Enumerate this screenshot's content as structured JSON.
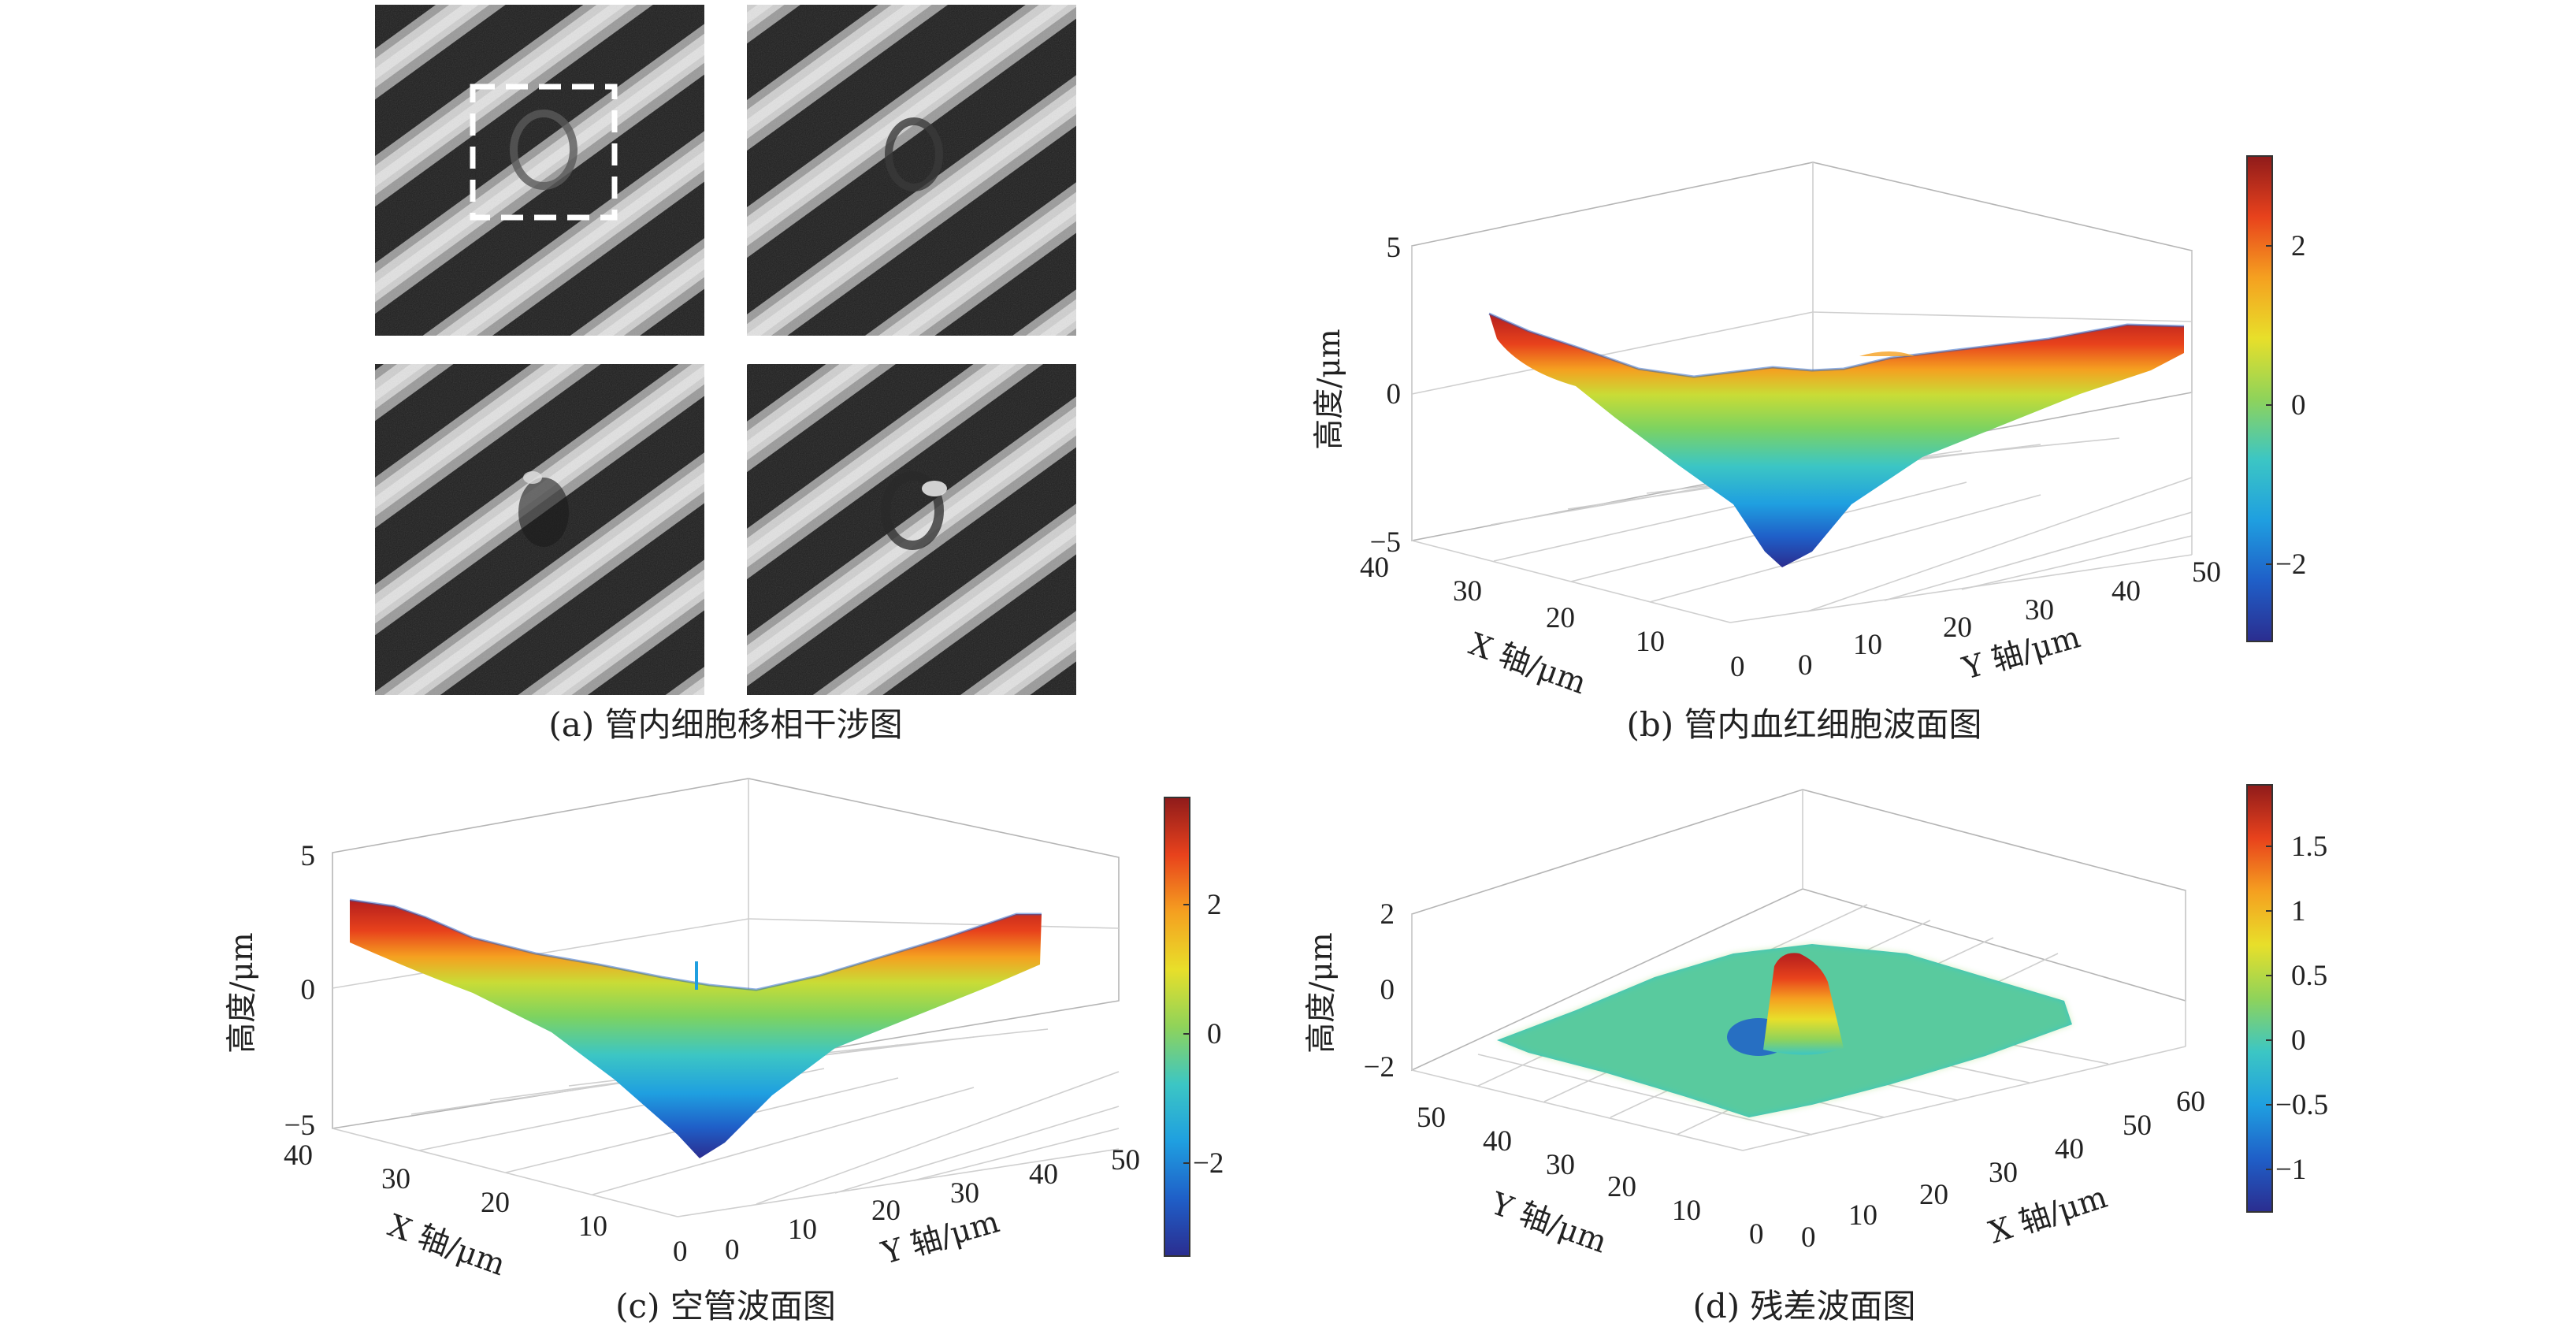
{
  "figure": {
    "panels": [
      {
        "id": "a",
        "caption": "(a) 管内细胞移相干涉图",
        "kind": "image-grid"
      },
      {
        "id": "b",
        "caption": "(b) 管内血红细胞波面图",
        "zlabel": "高度/μm",
        "xlabel": "X 轴/μm",
        "ylabel": "Y 轴/μm",
        "zticks": [
          "5",
          "0",
          "−5"
        ],
        "left_ticks": [
          "40",
          "30",
          "20",
          "10",
          "0"
        ],
        "right_ticks": [
          "0",
          "10",
          "20",
          "30",
          "40",
          "50"
        ],
        "colorbar_ticks": [
          "2",
          "0",
          "−2"
        ]
      },
      {
        "id": "c",
        "caption": "(c) 空管波面图",
        "zlabel": "高度/μm",
        "xlabel": "X 轴/μm",
        "ylabel": "Y 轴/μm",
        "zticks": [
          "5",
          "0",
          "−5"
        ],
        "left_ticks": [
          "40",
          "30",
          "20",
          "10",
          "0"
        ],
        "right_ticks": [
          "0",
          "10",
          "20",
          "30",
          "40",
          "50"
        ],
        "colorbar_ticks": [
          "2",
          "0",
          "−2"
        ]
      },
      {
        "id": "d",
        "caption": "(d) 残差波面图",
        "zlabel": "高度/μm",
        "xlabel": "Y 轴/μm",
        "ylabel": "X 轴/μm",
        "zticks": [
          "2",
          "0",
          "−2"
        ],
        "left_ticks": [
          "50",
          "40",
          "30",
          "20",
          "10",
          "0"
        ],
        "right_ticks": [
          "0",
          "10",
          "20",
          "30",
          "40",
          "50",
          "60"
        ],
        "colorbar_ticks": [
          "1.5",
          "1",
          "0.5",
          "0",
          "−0.5",
          "−1"
        ]
      }
    ]
  },
  "colors": {
    "colormap": [
      "#2b2d8f",
      "#1f5fc8",
      "#1f9fe0",
      "#3cc6c4",
      "#8fd35a",
      "#e8df2a",
      "#f5a020",
      "#e8421c",
      "#8f1b1b"
    ],
    "fringe_light": "#d8d8d8",
    "fringe_dark": "#1e1e1e"
  },
  "chart_data": [
    {
      "type": "surface",
      "panel": "b",
      "x_axis": "X 轴/μm",
      "y_axis": "Y 轴/μm",
      "z_axis": "高度/μm",
      "xlim": [
        0,
        40
      ],
      "ylim": [
        0,
        50
      ],
      "zlim": [
        -5,
        5
      ],
      "clim": [
        -3,
        3
      ],
      "shape": "V-shaped trough",
      "corner_heights": {
        "x40_y0": 2.5,
        "x0_y50": 2.2
      },
      "min_height": -4.5
    },
    {
      "type": "surface",
      "panel": "c",
      "x_axis": "X 轴/μm",
      "y_axis": "Y 轴/μm",
      "z_axis": "高度/μm",
      "xlim": [
        0,
        40
      ],
      "ylim": [
        0,
        50
      ],
      "zlim": [
        -5,
        5
      ],
      "clim": [
        -3.5,
        3.5
      ],
      "shape": "V-shaped trough",
      "corner_heights": {
        "x40_y0": 3.2,
        "x0_y50": 3.0
      },
      "min_height": -4.6
    },
    {
      "type": "surface",
      "panel": "d",
      "x_axis": "X 轴/μm",
      "y_axis": "Y 轴/μm",
      "z_axis": "高度/μm",
      "xlim": [
        0,
        60
      ],
      "ylim": [
        0,
        50
      ],
      "zlim": [
        -2,
        2
      ],
      "clim": [
        -1.3,
        1.9
      ],
      "shape": "flat residual with single cell peak",
      "peak_height": 1.9,
      "peak_location": {
        "x": 30,
        "y": 25
      }
    }
  ]
}
